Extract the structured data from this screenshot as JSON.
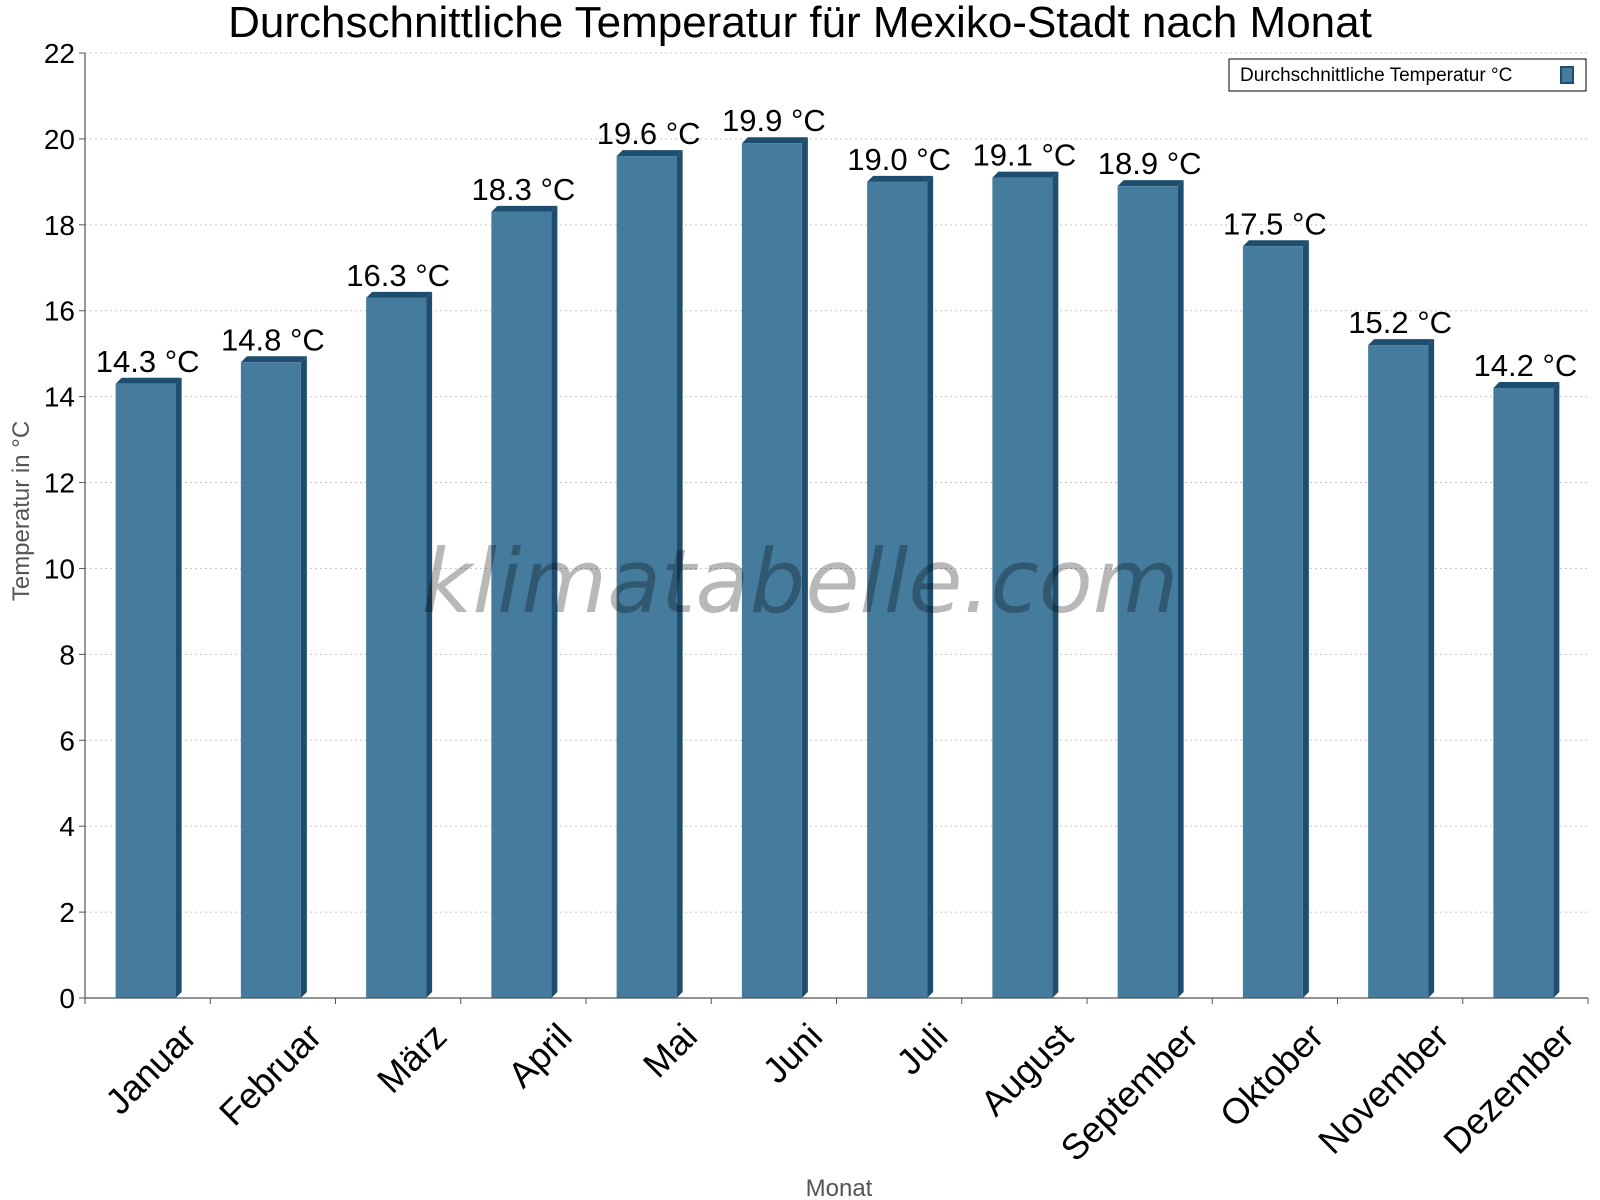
{
  "chart_data": {
    "type": "bar",
    "title": "Durchschnittliche Temperatur für Mexiko-Stadt nach Monat",
    "xlabel": "Monat",
    "ylabel": "Temperatur in °C",
    "ylim": [
      0,
      22
    ],
    "yticks": [
      0,
      2,
      4,
      6,
      8,
      10,
      12,
      14,
      16,
      18,
      20,
      22
    ],
    "grid": true,
    "legend_position": "top-right",
    "categories": [
      "Januar",
      "Februar",
      "März",
      "April",
      "Mai",
      "Juni",
      "Juli",
      "August",
      "September",
      "Oktober",
      "November",
      "Dezember"
    ],
    "series": [
      {
        "name": "Durchschnittliche Temperatur °C",
        "values": [
          14.3,
          14.8,
          16.3,
          18.3,
          19.6,
          19.9,
          19.0,
          19.1,
          18.9,
          17.5,
          15.2,
          14.2
        ],
        "data_labels": [
          "14.3 °C",
          "14.8 °C",
          "16.3 °C",
          "18.3 °C",
          "19.6 °C",
          "19.9 °C",
          "19.0 °C",
          "19.1 °C",
          "18.9 °C",
          "17.5 °C",
          "15.2 °C",
          "14.2 °C"
        ],
        "color": "#457b9d",
        "edge_color": "#1d4e6f"
      }
    ],
    "watermark": "klimatabelle.com"
  }
}
